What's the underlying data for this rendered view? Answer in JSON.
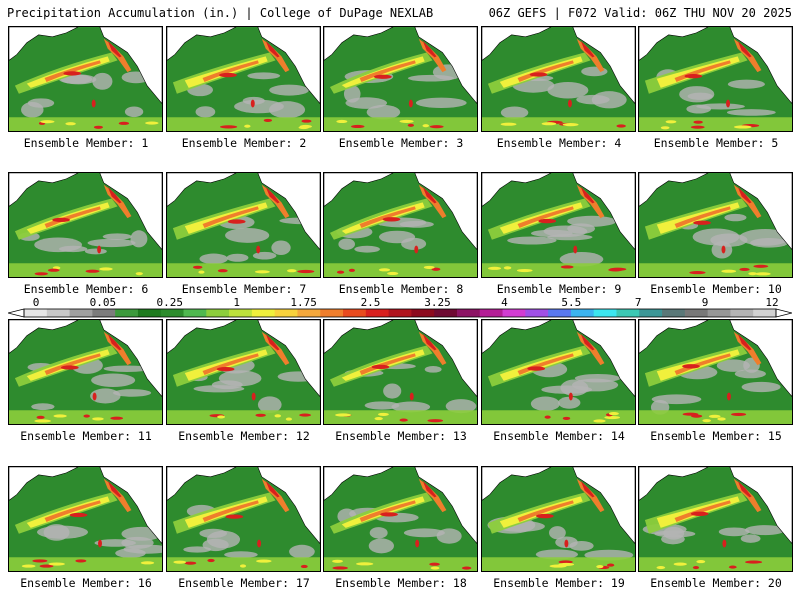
{
  "header": {
    "left": "Precipitation Accumulation (in.) | College of DuPage NEXLAB",
    "right": "06Z GEFS | F072 Valid: 06Z THU NOV 20 2025"
  },
  "panel_caption_prefix": "Ensemble Member:",
  "members": [
    {
      "label": "Ensemble Member: 1"
    },
    {
      "label": "Ensemble Member: 2"
    },
    {
      "label": "Ensemble Member: 3"
    },
    {
      "label": "Ensemble Member: 4"
    },
    {
      "label": "Ensemble Member: 5"
    },
    {
      "label": "Ensemble Member: 6"
    },
    {
      "label": "Ensemble Member: 7"
    },
    {
      "label": "Ensemble Member: 8"
    },
    {
      "label": "Ensemble Member: 9"
    },
    {
      "label": "Ensemble Member: 10"
    },
    {
      "label": "Ensemble Member: 11"
    },
    {
      "label": "Ensemble Member: 12"
    },
    {
      "label": "Ensemble Member: 13"
    },
    {
      "label": "Ensemble Member: 14"
    },
    {
      "label": "Ensemble Member: 15"
    },
    {
      "label": "Ensemble Member: 16"
    },
    {
      "label": "Ensemble Member: 17"
    },
    {
      "label": "Ensemble Member: 18"
    },
    {
      "label": "Ensemble Member: 19"
    },
    {
      "label": "Ensemble Member: 20"
    }
  ],
  "colorbar": {
    "tick_labels": [
      "0",
      "0.05",
      "0.25",
      "1",
      "1.75",
      "2.5",
      "3.25",
      "4",
      "5.5",
      "7",
      "9",
      "12"
    ],
    "colors": [
      "#e6e6e6",
      "#c8c8c8",
      "#a0a0a0",
      "#7c7c7c",
      "#3c9a3c",
      "#1e7a1e",
      "#2d8c2d",
      "#4fb84f",
      "#8ccd3c",
      "#bde23c",
      "#f0f03c",
      "#f8d23c",
      "#f4a83c",
      "#ef7e2c",
      "#e84b1e",
      "#d8201e",
      "#b0141e",
      "#8c0a1e",
      "#6e0a32",
      "#8c1464",
      "#b41e96",
      "#d23cd2",
      "#a050e6",
      "#5a78f0",
      "#3cb4f0",
      "#3ce6f0",
      "#3cc8b4",
      "#3c9696",
      "#5a7878",
      "#787878",
      "#969696",
      "#b4b4b4",
      "#d2d2d2"
    ],
    "palette": {
      "ocean": "#2e8b2e",
      "land": "#ffffff",
      "dry": "#b4b4b4",
      "light": "#8ccd3c",
      "moderate": "#f0f03c",
      "heavy": "#ef7e2c",
      "extreme": "#d8201e",
      "coast": "#000000"
    }
  }
}
